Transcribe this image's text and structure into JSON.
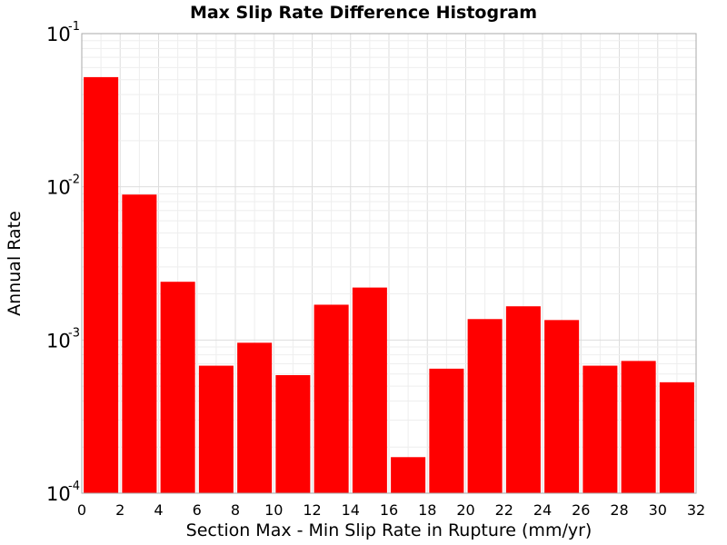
{
  "chart_data": {
    "type": "bar",
    "title": "Max Slip Rate Difference Histogram",
    "xlabel": "Section Max - Min Slip Rate in Rupture (mm/yr)",
    "ylabel": "Annual Rate",
    "xlim": [
      0,
      32
    ],
    "ylim": [
      0.0001,
      0.1
    ],
    "yscale": "log",
    "grid": true,
    "x_ticks": [
      "0",
      "2",
      "4",
      "6",
      "8",
      "10",
      "12",
      "14",
      "16",
      "18",
      "20",
      "22",
      "24",
      "26",
      "28",
      "30",
      "32"
    ],
    "y_ticks": [
      {
        "base": "10",
        "exp": "-1"
      },
      {
        "base": "10",
        "exp": "-2"
      },
      {
        "base": "10",
        "exp": "-3"
      },
      {
        "base": "10",
        "exp": "-4"
      }
    ],
    "bin_width": 2,
    "bins": [
      {
        "x": 1,
        "value": 0.052
      },
      {
        "x": 3,
        "value": 0.0089
      },
      {
        "x": 5,
        "value": 0.0024
      },
      {
        "x": 7,
        "value": 0.00068
      },
      {
        "x": 9,
        "value": 0.00096
      },
      {
        "x": 11,
        "value": 0.00059
      },
      {
        "x": 13,
        "value": 0.0017
      },
      {
        "x": 15,
        "value": 0.0022
      },
      {
        "x": 17,
        "value": 0.000172
      },
      {
        "x": 19,
        "value": 0.00065
      },
      {
        "x": 21,
        "value": 0.00137
      },
      {
        "x": 23,
        "value": 0.00166
      },
      {
        "x": 25,
        "value": 0.00135
      },
      {
        "x": 27,
        "value": 0.00068
      },
      {
        "x": 29,
        "value": 0.00073
      },
      {
        "x": 31,
        "value": 0.00053
      }
    ],
    "colors": {
      "bar": "#ff0000"
    }
  }
}
